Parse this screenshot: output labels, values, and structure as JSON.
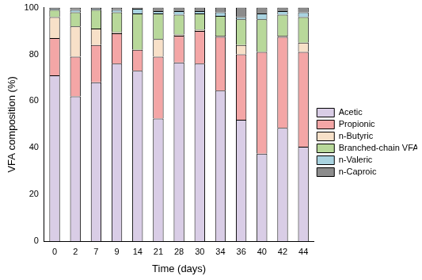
{
  "chart_data": {
    "type": "bar",
    "stacked": true,
    "x_label": "Time (days)",
    "y_label": "VFA composition (%)",
    "categories": [
      "0",
      "2",
      "7",
      "9",
      "14",
      "21",
      "28",
      "30",
      "34",
      "36",
      "40",
      "42",
      "44"
    ],
    "ylim": [
      0,
      100
    ],
    "yticks": [
      0,
      20,
      40,
      60,
      80,
      100
    ],
    "grid": false,
    "legend": "right",
    "series": [
      {
        "name": "Acetic",
        "color": "#d9cde6",
        "values": [
          71,
          62,
          68,
          76,
          73,
          52.5,
          76.5,
          76,
          64.5,
          52,
          37.5,
          48.5,
          40.5
        ]
      },
      {
        "name": "Propionic",
        "color": "#f4a6a6",
        "values": [
          16,
          17,
          16,
          13,
          9,
          26.5,
          11.5,
          14,
          23,
          28,
          43.5,
          39,
          40.5
        ]
      },
      {
        "name": "n-Butyric",
        "color": "#f7e0c8",
        "values": [
          9,
          13,
          7,
          0.5,
          0,
          7.5,
          0.5,
          0.5,
          0.5,
          4,
          0,
          0.5,
          4
        ]
      },
      {
        "name": "Branched-chain VFA",
        "color": "#b8d89a",
        "values": [
          3,
          6,
          8,
          8.5,
          15.5,
          11,
          8.5,
          7,
          8.5,
          11,
          14,
          9,
          11
        ]
      },
      {
        "name": "n-Valeric",
        "color": "#a9d3e0",
        "values": [
          0.5,
          1,
          0.5,
          1,
          2,
          1,
          1.5,
          1,
          1.5,
          1,
          2.5,
          1.5,
          2
        ]
      },
      {
        "name": "n-Caproic",
        "color": "#8c8c8c",
        "values": [
          0.5,
          1,
          0.5,
          1,
          0.5,
          1.5,
          1.5,
          1.5,
          2,
          4,
          2.5,
          1.5,
          2
        ]
      }
    ]
  }
}
